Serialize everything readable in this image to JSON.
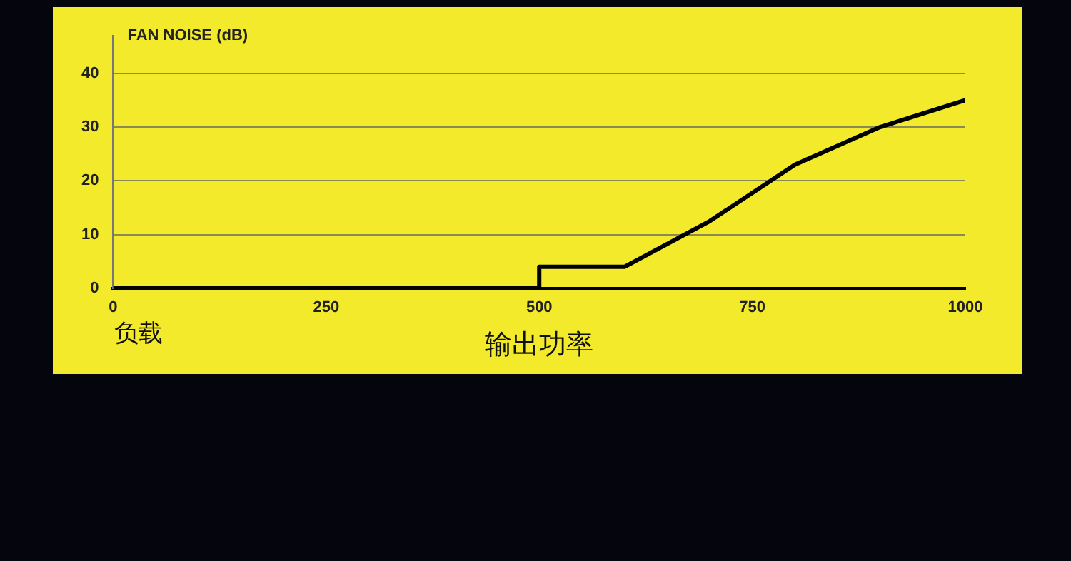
{
  "chart_data": {
    "type": "line",
    "ylabel": "FAN NOISE (dB)",
    "xlabel": "输出功率",
    "annotations": [
      "负载"
    ],
    "x": [
      0,
      500,
      500,
      600,
      700,
      800,
      900,
      1000
    ],
    "series": [
      {
        "color": "#000000",
        "values": [
          0,
          0,
          4,
          4,
          12.5,
          23,
          30,
          35
        ]
      }
    ],
    "xlim": [
      0,
      1000
    ],
    "xticks": [
      0,
      250,
      500,
      750,
      1000
    ],
    "ylim": [
      0,
      47
    ],
    "yticks": [
      0,
      10,
      20,
      30,
      40
    ],
    "grid": "y",
    "legend": false,
    "marker": "none",
    "line_style": "solid"
  }
}
